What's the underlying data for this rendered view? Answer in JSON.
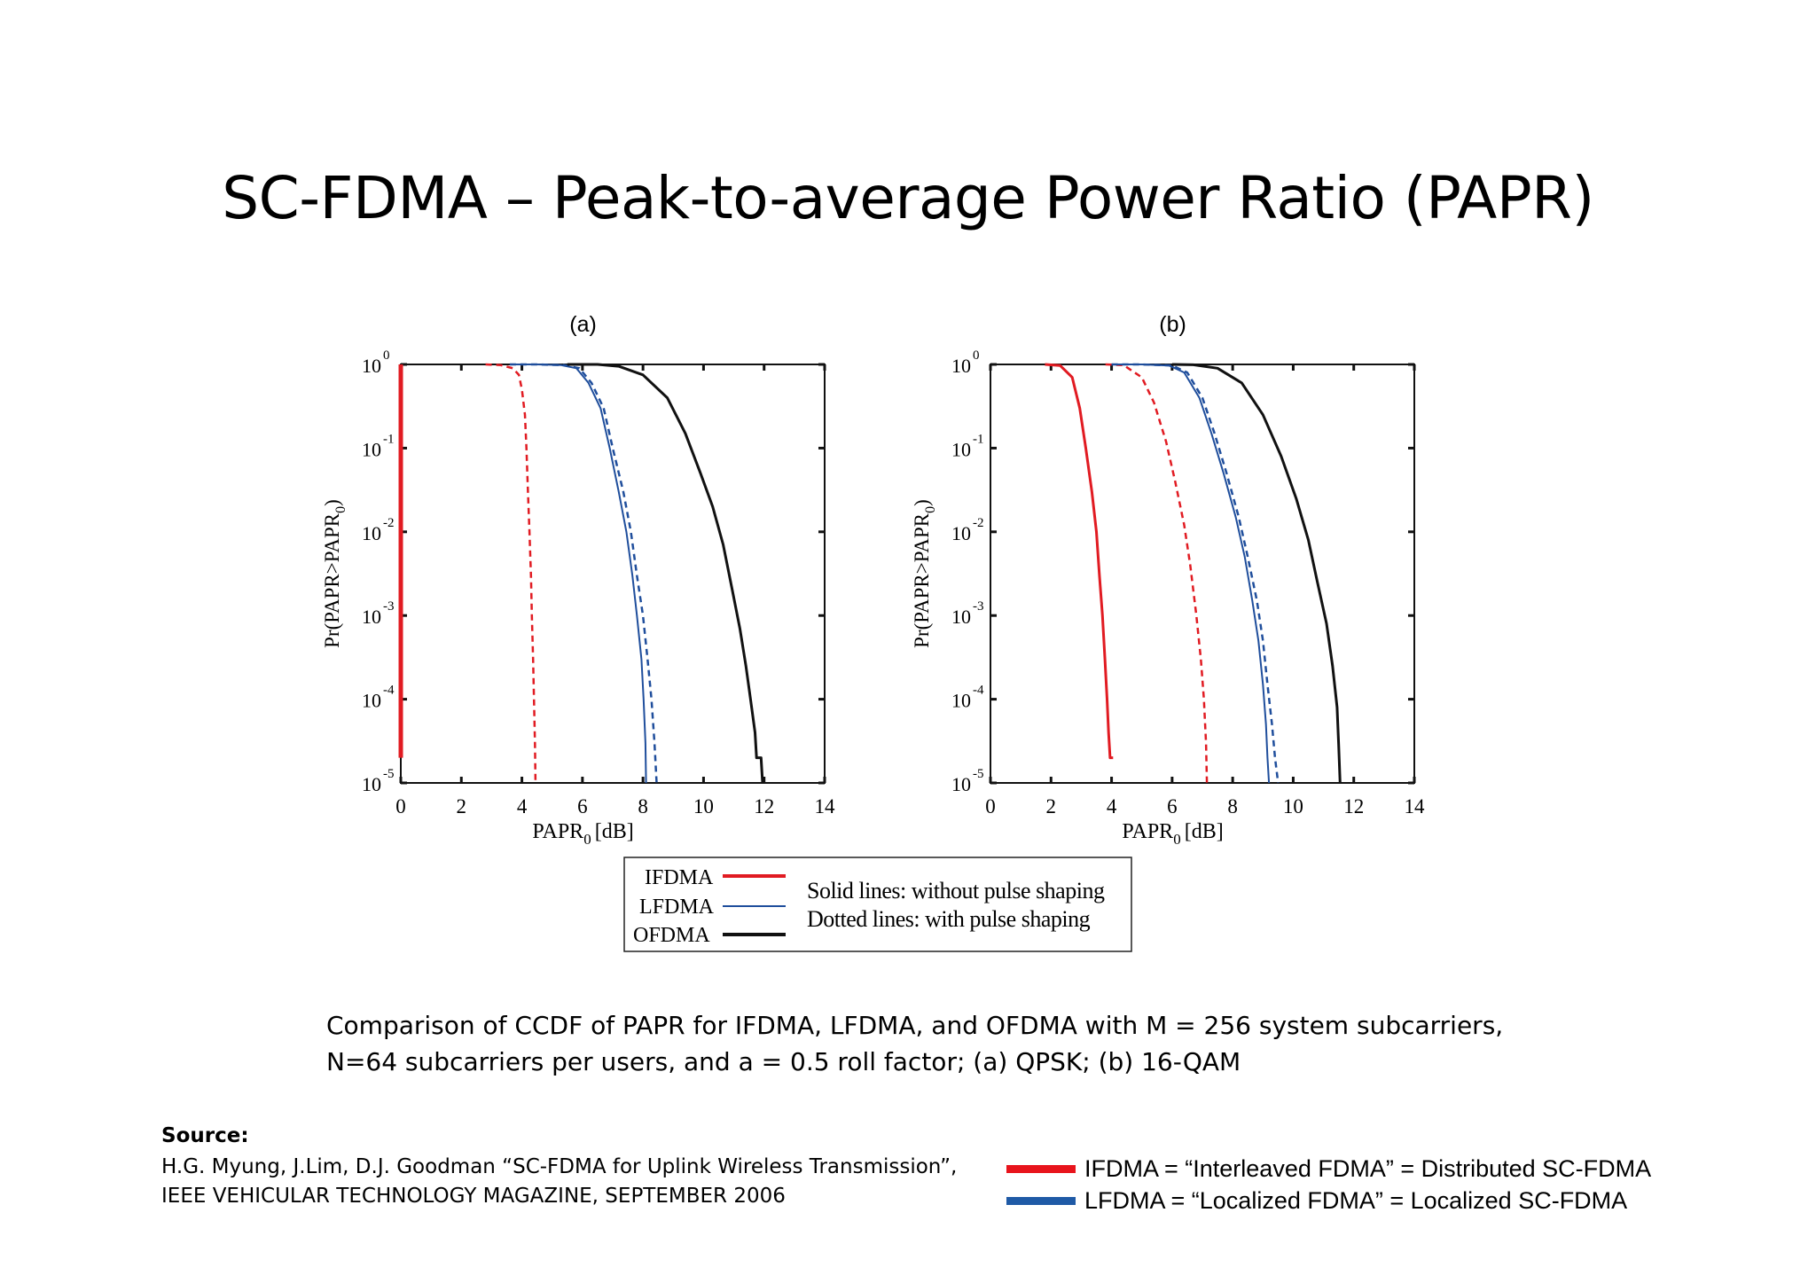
{
  "slide": {
    "title": "SC-FDMA – Peak-to-average Power Ratio (PAPR)",
    "caption_line1": "Comparison of CCDF of PAPR for IFDMA, LFDMA, and OFDMA with M = 256 system subcarriers,",
    "caption_line2": "N=64 subcarriers per users, and a = 0.5 roll factor; (a) QPSK; (b) 16-QAM",
    "source_heading": "Source:",
    "source_line1": "H.G. Myung, J.Lim, D.J. Goodman “SC-FDMA for Uplink Wireless Transmission”,",
    "source_line2": "IEEE VEHICULAR TECHNOLOGY MAGAZINE, SEPTEMBER 2006"
  },
  "key": [
    {
      "text": "IFDMA = “Interleaved FDMA” = Distributed SC-FDMA",
      "color": "#e8141c"
    },
    {
      "text": "LFDMA = “Localized FDMA” = Localized SC-FDMA",
      "color": "#1f5aa6"
    }
  ],
  "legend": {
    "entries": [
      {
        "label": "IFDMA",
        "color": "#e11b22"
      },
      {
        "label": "LFDMA",
        "color": "#1f4e9c"
      },
      {
        "label": "OFDMA",
        "color": "#111111"
      }
    ],
    "note1": "Solid lines: without pulse shaping",
    "note2": "Dotted lines: with pulse shaping"
  },
  "chart_data": [
    {
      "type": "line",
      "title": "(a)",
      "xlabel": "PAPR",
      "xlabel_sub": "0",
      "xlabel_unit": "[dB]",
      "ylabel": "Pr(PAPR>PAPR",
      "ylabel_sub": "0",
      "ylabel_end": ")",
      "xlim": [
        0,
        14
      ],
      "ylim": [
        1e-05,
        1
      ],
      "yscale": "log",
      "xticks": [
        "0",
        "2",
        "4",
        "6",
        "8",
        "10",
        "12",
        "14"
      ],
      "yticks": [
        0,
        -1,
        -2,
        -3,
        -4,
        -5
      ],
      "series": [
        {
          "name": "IFDMA",
          "style": "solid",
          "color": "#e11b22",
          "width": 5,
          "points": [
            [
              0,
              1
            ],
            [
              0,
              2e-05
            ]
          ]
        },
        {
          "name": "IFDMA",
          "style": "dashed",
          "color": "#e11b22",
          "width": 2.5,
          "points": [
            [
              2.8,
              1
            ],
            [
              3.3,
              0.98
            ],
            [
              3.7,
              0.9
            ],
            [
              3.9,
              0.75
            ],
            [
              4.0,
              0.5
            ],
            [
              4.1,
              0.25
            ],
            [
              4.15,
              0.1
            ],
            [
              4.2,
              0.03
            ],
            [
              4.25,
              0.01
            ],
            [
              4.3,
              0.003
            ],
            [
              4.33,
              0.001
            ],
            [
              4.37,
              0.0003
            ],
            [
              4.4,
              0.0001
            ],
            [
              4.43,
              3e-05
            ],
            [
              4.45,
              1e-05
            ]
          ]
        },
        {
          "name": "LFDMA",
          "style": "solid",
          "color": "#1f4e9c",
          "width": 2,
          "points": [
            [
              3.6,
              1
            ],
            [
              4.5,
              1
            ],
            [
              5.3,
              0.98
            ],
            [
              5.8,
              0.9
            ],
            [
              6.2,
              0.6
            ],
            [
              6.6,
              0.3
            ],
            [
              6.9,
              0.1
            ],
            [
              7.2,
              0.03
            ],
            [
              7.45,
              0.01
            ],
            [
              7.65,
              0.003
            ],
            [
              7.8,
              0.001
            ],
            [
              7.95,
              0.0003
            ],
            [
              8.02,
              0.0001
            ],
            [
              8.08,
              3e-05
            ],
            [
              8.1,
              1e-05
            ]
          ]
        },
        {
          "name": "LFDMA",
          "style": "dashed",
          "color": "#1f4e9c",
          "width": 2.5,
          "points": [
            [
              3.6,
              1
            ],
            [
              4.5,
              1
            ],
            [
              5.4,
              0.98
            ],
            [
              5.9,
              0.9
            ],
            [
              6.3,
              0.6
            ],
            [
              6.7,
              0.3
            ],
            [
              7.0,
              0.1
            ],
            [
              7.35,
              0.03
            ],
            [
              7.6,
              0.01
            ],
            [
              7.8,
              0.003
            ],
            [
              8.0,
              0.001
            ],
            [
              8.15,
              0.0003
            ],
            [
              8.28,
              0.0001
            ],
            [
              8.38,
              3e-05
            ],
            [
              8.45,
              1e-05
            ]
          ]
        },
        {
          "name": "OFDMA",
          "style": "solid",
          "color": "#111111",
          "width": 3,
          "points": [
            [
              5.5,
              1
            ],
            [
              6.5,
              1
            ],
            [
              7.2,
              0.95
            ],
            [
              8.0,
              0.75
            ],
            [
              8.8,
              0.4
            ],
            [
              9.4,
              0.15
            ],
            [
              9.9,
              0.05
            ],
            [
              10.3,
              0.02
            ],
            [
              10.65,
              0.007
            ],
            [
              10.95,
              0.002
            ],
            [
              11.2,
              0.0007
            ],
            [
              11.4,
              0.00025
            ],
            [
              11.55,
              0.0001
            ],
            [
              11.7,
              4e-05
            ],
            [
              11.75,
              2e-05
            ],
            [
              11.9,
              2e-05
            ],
            [
              11.95,
              1e-05
            ]
          ]
        }
      ]
    },
    {
      "type": "line",
      "title": "(b)",
      "xlabel": "PAPR",
      "xlabel_sub": "0",
      "xlabel_unit": "[dB]",
      "ylabel": "Pr(PAPR>PAPR",
      "ylabel_sub": "0",
      "ylabel_end": ")",
      "xlim": [
        0,
        14
      ],
      "ylim": [
        1e-05,
        1
      ],
      "yscale": "log",
      "xticks": [
        "0",
        "2",
        "4",
        "6",
        "8",
        "10",
        "12",
        "14"
      ],
      "yticks": [
        0,
        -1,
        -2,
        -3,
        -4,
        -5
      ],
      "series": [
        {
          "name": "IFDMA",
          "style": "solid",
          "color": "#e11b22",
          "width": 3,
          "points": [
            [
              1.8,
              1
            ],
            [
              2.3,
              0.97
            ],
            [
              2.7,
              0.7
            ],
            [
              2.95,
              0.3
            ],
            [
              3.15,
              0.1
            ],
            [
              3.35,
              0.03
            ],
            [
              3.5,
              0.01
            ],
            [
              3.6,
              0.003
            ],
            [
              3.7,
              0.001
            ],
            [
              3.78,
              0.0003
            ],
            [
              3.85,
              0.0001
            ],
            [
              3.9,
              4e-05
            ],
            [
              3.95,
              2e-05
            ],
            [
              4.05,
              2e-05
            ]
          ]
        },
        {
          "name": "IFDMA",
          "style": "dashed",
          "color": "#e11b22",
          "width": 2.5,
          "points": [
            [
              3.8,
              1
            ],
            [
              4.4,
              0.98
            ],
            [
              5.0,
              0.7
            ],
            [
              5.4,
              0.35
            ],
            [
              5.8,
              0.12
            ],
            [
              6.1,
              0.04
            ],
            [
              6.4,
              0.012
            ],
            [
              6.6,
              0.004
            ],
            [
              6.8,
              0.001
            ],
            [
              6.95,
              0.0003
            ],
            [
              7.05,
              0.0001
            ],
            [
              7.12,
              3e-05
            ],
            [
              7.15,
              1e-05
            ]
          ]
        },
        {
          "name": "LFDMA",
          "style": "solid",
          "color": "#1f4e9c",
          "width": 2,
          "points": [
            [
              4.0,
              1
            ],
            [
              5.0,
              1
            ],
            [
              5.9,
              0.97
            ],
            [
              6.4,
              0.8
            ],
            [
              6.9,
              0.4
            ],
            [
              7.3,
              0.15
            ],
            [
              7.7,
              0.05
            ],
            [
              8.1,
              0.015
            ],
            [
              8.4,
              0.005
            ],
            [
              8.65,
              0.0015
            ],
            [
              8.85,
              0.0005
            ],
            [
              9.0,
              0.00015
            ],
            [
              9.1,
              5e-05
            ],
            [
              9.15,
              2e-05
            ],
            [
              9.2,
              1e-05
            ]
          ]
        },
        {
          "name": "LFDMA",
          "style": "dashed",
          "color": "#1f4e9c",
          "width": 2.5,
          "points": [
            [
              4.0,
              1
            ],
            [
              5.0,
              1
            ],
            [
              6.0,
              0.97
            ],
            [
              6.5,
              0.8
            ],
            [
              7.0,
              0.4
            ],
            [
              7.4,
              0.15
            ],
            [
              7.8,
              0.05
            ],
            [
              8.2,
              0.015
            ],
            [
              8.5,
              0.005
            ],
            [
              8.8,
              0.0015
            ],
            [
              9.0,
              0.0005
            ],
            [
              9.15,
              0.00015
            ],
            [
              9.3,
              5e-05
            ],
            [
              9.4,
              2e-05
            ],
            [
              9.5,
              1e-05
            ]
          ]
        },
        {
          "name": "OFDMA",
          "style": "solid",
          "color": "#111111",
          "width": 3,
          "points": [
            [
              6.0,
              1
            ],
            [
              6.7,
              0.99
            ],
            [
              7.5,
              0.9
            ],
            [
              8.3,
              0.6
            ],
            [
              9.0,
              0.25
            ],
            [
              9.6,
              0.08
            ],
            [
              10.1,
              0.025
            ],
            [
              10.5,
              0.008
            ],
            [
              10.8,
              0.0025
            ],
            [
              11.1,
              0.0008
            ],
            [
              11.3,
              0.00025
            ],
            [
              11.45,
              8e-05
            ],
            [
              11.5,
              3e-05
            ],
            [
              11.55,
              1e-05
            ]
          ]
        }
      ]
    }
  ]
}
